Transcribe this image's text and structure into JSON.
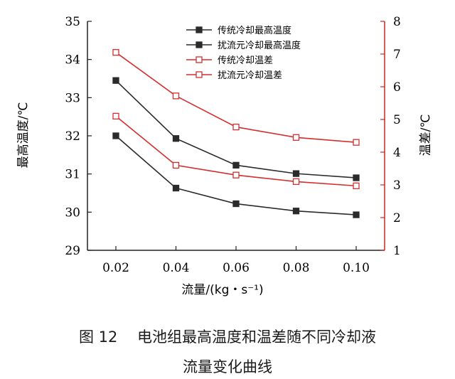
{
  "chart_data": {
    "type": "line",
    "x": [
      0.02,
      0.04,
      0.06,
      0.08,
      0.1
    ],
    "x_tick_labels": [
      "0.02",
      "0.04",
      "0.06",
      "0.08",
      "0.10"
    ],
    "xlabel": "流量/(kg・s⁻¹)",
    "ylabel_left": "最高温度/℃",
    "ylabel_right": "温差/℃",
    "ylim_left": [
      29,
      35
    ],
    "ylim_right": [
      1,
      8
    ],
    "y_left_ticks": [
      "29",
      "30",
      "31",
      "32",
      "33",
      "34",
      "35"
    ],
    "y_right_ticks": [
      "1",
      "2",
      "3",
      "4",
      "5",
      "6",
      "7",
      "8"
    ],
    "grid": false,
    "legend_position": "top-right",
    "colors": {
      "black_axis": "#222222",
      "red_axis": "#c62828"
    },
    "series": [
      {
        "name": "传统冷却最高温度",
        "axis": "left",
        "marker": "filled-square",
        "color": "#2b2b2b",
        "values": [
          33.45,
          31.93,
          31.23,
          31.01,
          30.9
        ]
      },
      {
        "name": "扰流元冷却最高温度",
        "axis": "left",
        "marker": "filled-square",
        "color": "#2b2b2b",
        "values": [
          32.0,
          30.63,
          30.22,
          30.03,
          29.93
        ]
      },
      {
        "name": "传统冷却温差",
        "axis": "right",
        "marker": "open-square",
        "color": "#d32f2f",
        "values": [
          7.05,
          5.72,
          4.77,
          4.45,
          4.3
        ]
      },
      {
        "name": "扰流元冷却温差",
        "axis": "right",
        "marker": "open-square",
        "color": "#d32f2f",
        "values": [
          5.1,
          3.6,
          3.3,
          3.1,
          2.97
        ]
      }
    ]
  },
  "caption": {
    "line1": "图 12　 电池组最高温度和温差随不同冷却液",
    "line2": "流量变化曲线"
  }
}
